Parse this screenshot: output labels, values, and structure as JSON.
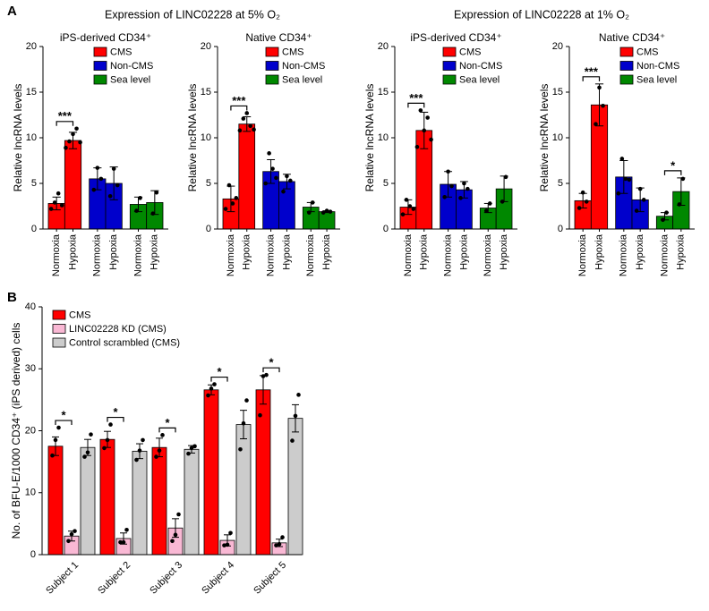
{
  "figure": {
    "labels": [
      "A",
      "B"
    ],
    "group_titles": [
      "Expression of LINC02228 at 5% O₂",
      "Expression of LINC02228 at 1% O₂"
    ]
  },
  "chart_data": [
    {
      "type": "bar",
      "title": "iPS-derived CD34⁺",
      "ylabel": "Relative lncRNA levels",
      "legend": "upper right",
      "categories": [
        "Normoxia",
        "Hypoxia",
        "Normoxia",
        "Hypoxia",
        "Normoxia",
        "Hypoxia"
      ],
      "ylim": [
        0,
        20
      ],
      "yticks": [
        0,
        5,
        10,
        15,
        20
      ],
      "series": [
        {
          "name": "CMS",
          "color": "#ff0000",
          "values": [
            2.8,
            9.7,
            null,
            null,
            null,
            null
          ],
          "errors": [
            0.7,
            0.9,
            null,
            null,
            null,
            null
          ],
          "points": [
            [
              2.2,
              2.9,
              3.9,
              2.6
            ],
            [
              8.9,
              9.6,
              10.4,
              11.0,
              9.5
            ],
            null,
            null,
            null,
            null
          ]
        },
        {
          "name": "Non-CMS",
          "color": "#0000cc",
          "values": [
            null,
            null,
            5.5,
            5.0,
            null,
            null
          ],
          "errors": [
            null,
            null,
            1.2,
            1.8,
            null,
            null
          ],
          "points": [
            null,
            null,
            [
              4.3,
              6.7,
              5.5
            ],
            [
              3.6,
              6.6,
              4.8
            ],
            null,
            null
          ]
        },
        {
          "name": "Sea level",
          "color": "#008800",
          "values": [
            null,
            null,
            null,
            null,
            2.7,
            2.9
          ],
          "errors": [
            null,
            null,
            null,
            null,
            0.8,
            1.3
          ],
          "points": [
            null,
            null,
            null,
            null,
            [
              2.0,
              3.4
            ],
            [
              1.7,
              4.0
            ]
          ]
        }
      ],
      "significance": [
        {
          "series": "CMS",
          "label": "***"
        }
      ]
    },
    {
      "type": "bar",
      "title": "Native CD34⁺",
      "ylabel": "Relative lncRNA levels",
      "legend": "upper right",
      "categories": [
        "Normoxia",
        "Hypoxia",
        "Normoxia",
        "Hypoxia",
        "Normoxia",
        "Hypoxia"
      ],
      "ylim": [
        0,
        20
      ],
      "yticks": [
        0,
        5,
        10,
        15,
        20
      ],
      "series": [
        {
          "name": "CMS",
          "color": "#ff0000",
          "values": [
            3.3,
            11.5,
            null,
            null,
            null,
            null
          ],
          "errors": [
            1.4,
            0.8,
            null,
            null,
            null,
            null
          ],
          "points": [
            [
              2.2,
              4.8,
              2.8,
              3.4
            ],
            [
              10.8,
              12.1,
              12.7,
              11.3,
              10.9
            ],
            null,
            null,
            null,
            null
          ]
        },
        {
          "name": "Non-CMS",
          "color": "#0000cc",
          "values": [
            null,
            null,
            6.3,
            5.2,
            null,
            null
          ],
          "errors": [
            null,
            null,
            1.3,
            0.8,
            null,
            null
          ],
          "points": [
            null,
            null,
            [
              5.0,
              8.3,
              6.6,
              5.6
            ],
            [
              4.1,
              5.8,
              5.3
            ],
            null,
            null
          ]
        },
        {
          "name": "Sea level",
          "color": "#008800",
          "values": [
            null,
            null,
            null,
            null,
            2.4,
            1.9
          ],
          "errors": [
            null,
            null,
            null,
            null,
            0.5,
            0.1
          ],
          "points": [
            null,
            null,
            null,
            null,
            [
              1.8,
              2.9
            ],
            [
              1.8,
              2.0,
              1.9
            ]
          ]
        }
      ],
      "significance": [
        {
          "series": "CMS",
          "label": "***"
        }
      ]
    },
    {
      "type": "bar",
      "title": "iPS-derived CD34⁺",
      "ylabel": "Relative lncRNA levels",
      "legend": "upper right",
      "categories": [
        "Normoxia",
        "Hypoxia",
        "Normoxia",
        "Hypoxia",
        "Normoxia",
        "Hypoxia"
      ],
      "ylim": [
        0,
        20
      ],
      "yticks": [
        0,
        5,
        10,
        15,
        20
      ],
      "series": [
        {
          "name": "CMS",
          "color": "#ff0000",
          "values": [
            2.4,
            10.8,
            null,
            null,
            null,
            null
          ],
          "errors": [
            0.8,
            2.0,
            null,
            null,
            null,
            null
          ],
          "points": [
            [
              1.6,
              3.2,
              2.5,
              2.2
            ],
            [
              9.0,
              13.0,
              10.8,
              12.2,
              9.8
            ],
            null,
            null,
            null,
            null
          ]
        },
        {
          "name": "Non-CMS",
          "color": "#0000cc",
          "values": [
            null,
            null,
            4.9,
            4.3,
            null,
            null
          ],
          "errors": [
            null,
            null,
            1.4,
            0.9,
            null,
            null
          ],
          "points": [
            null,
            null,
            [
              3.5,
              6.3,
              4.7
            ],
            [
              3.4,
              5.0,
              4.4
            ],
            null,
            null
          ]
        },
        {
          "name": "Sea level",
          "color": "#008800",
          "values": [
            null,
            null,
            null,
            null,
            2.3,
            4.4
          ],
          "errors": [
            null,
            null,
            null,
            null,
            0.5,
            1.4
          ],
          "points": [
            null,
            null,
            null,
            null,
            [
              2.0,
              2.8
            ],
            [
              3.0,
              5.7
            ]
          ]
        }
      ],
      "significance": [
        {
          "series": "CMS",
          "label": "***"
        }
      ]
    },
    {
      "type": "bar",
      "title": "Native CD34⁺",
      "ylabel": "Relative lncRNA levels",
      "legend": "upper right",
      "categories": [
        "Normoxia",
        "Hypoxia",
        "Normoxia",
        "Hypoxia",
        "Normoxia",
        "Hypoxia"
      ],
      "ylim": [
        0,
        20
      ],
      "yticks": [
        0,
        5,
        10,
        15,
        20
      ],
      "series": [
        {
          "name": "CMS",
          "color": "#ff0000",
          "values": [
            3.1,
            13.6,
            null,
            null,
            null,
            null
          ],
          "errors": [
            0.8,
            2.3,
            null,
            null,
            null,
            null
          ],
          "points": [
            [
              2.3,
              4.0,
              3.0
            ],
            [
              11.5,
              15.5,
              13.5
            ],
            null,
            null,
            null,
            null
          ]
        },
        {
          "name": "Non-CMS",
          "color": "#0000cc",
          "values": [
            null,
            null,
            5.7,
            3.2,
            null,
            null
          ],
          "errors": [
            null,
            null,
            1.8,
            1.3,
            null,
            null
          ],
          "points": [
            null,
            null,
            [
              3.9,
              7.7,
              5.5,
              5.4
            ],
            [
              2.0,
              4.4,
              3.2
            ],
            null,
            null
          ]
        },
        {
          "name": "Sea level",
          "color": "#008800",
          "values": [
            null,
            null,
            null,
            null,
            1.4,
            4.1
          ],
          "errors": [
            null,
            null,
            null,
            null,
            0.4,
            1.5
          ],
          "points": [
            null,
            null,
            null,
            null,
            [
              1.0,
              1.8
            ],
            [
              2.7,
              5.5
            ]
          ]
        }
      ],
      "significance": [
        {
          "series": "CMS",
          "label": "***"
        },
        {
          "series": "Sea level",
          "label": "*"
        }
      ]
    },
    {
      "type": "bar",
      "ylabel": "No. of BFU-E/1000 CD34⁺ (iPS derived) cells",
      "legend": "upper left",
      "categories": [
        "Subject 1",
        "Subject 2",
        "Subject 3",
        "Subject 4",
        "Subject 5"
      ],
      "ylim": [
        0,
        40
      ],
      "yticks": [
        0,
        10,
        20,
        30,
        40
      ],
      "series": [
        {
          "name": "CMS",
          "color": "#ff0000",
          "values": [
            17.5,
            18.6,
            17.3,
            26.6,
            26.6
          ],
          "errors": [
            1.5,
            1.3,
            1.5,
            0.8,
            2.3
          ],
          "points": [
            [
              16,
              18.5,
              20.5
            ],
            [
              17.2,
              18.5,
              21
            ],
            [
              15.8,
              16.8,
              19.3
            ],
            [
              25.7,
              26.8,
              27.5
            ],
            [
              22.5,
              28.8,
              29
            ]
          ]
        },
        {
          "name": "LINC02228 KD (CMS)",
          "color": "#f9b8d4",
          "values": [
            3.0,
            2.6,
            4.3,
            2.3,
            1.9
          ],
          "errors": [
            0.8,
            0.9,
            1.5,
            0.9,
            0.6
          ],
          "points": [
            [
              2.2,
              3.3,
              3.8
            ],
            [
              2,
              2,
              4
            ],
            [
              2.2,
              3.2,
              6.5
            ],
            [
              1.5,
              1.6,
              3.5
            ],
            [
              1.5,
              1.7,
              2.8
            ]
          ]
        },
        {
          "name": "Control scrambled (CMS)",
          "color": "#cccccc",
          "values": [
            17.3,
            16.7,
            17.0,
            21.0,
            22.0
          ],
          "errors": [
            1.3,
            1.2,
            0.6,
            2.3,
            2.2
          ],
          "points": [
            [
              15.8,
              16.5,
              19.4
            ],
            [
              15.3,
              16.8,
              18.5
            ],
            [
              16.3,
              17.2,
              17.5
            ],
            [
              17,
              21.2,
              24.9
            ],
            [
              18.4,
              22.4,
              25.8
            ]
          ]
        }
      ],
      "significance": [
        {
          "category": "Subject 1",
          "between": [
            "CMS",
            "LINC02228 KD (CMS)"
          ],
          "label": "*"
        },
        {
          "category": "Subject 2",
          "between": [
            "CMS",
            "LINC02228 KD (CMS)"
          ],
          "label": "*"
        },
        {
          "category": "Subject 3",
          "between": [
            "CMS",
            "LINC02228 KD (CMS)"
          ],
          "label": "*"
        },
        {
          "category": "Subject 4",
          "between": [
            "CMS",
            "LINC02228 KD (CMS)"
          ],
          "label": "*"
        },
        {
          "category": "Subject 5",
          "between": [
            "CMS",
            "LINC02228 KD (CMS)"
          ],
          "label": "*"
        }
      ]
    }
  ]
}
